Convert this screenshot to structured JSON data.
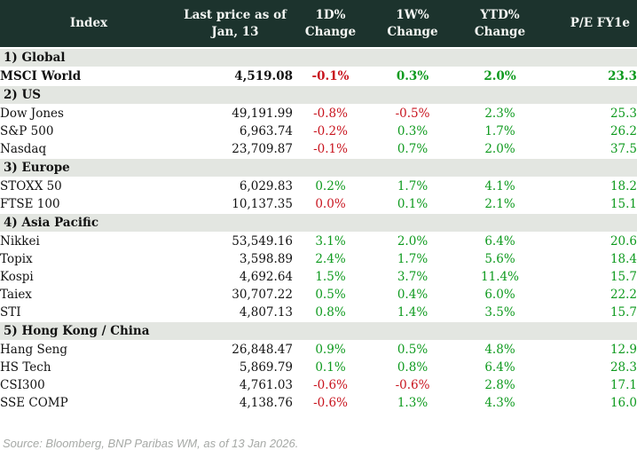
{
  "colors": {
    "header_bg": "#1c332d",
    "header_text": "#f4f6f3",
    "section_bg": "#e3e6e1",
    "positive": "#0e9a1e",
    "negative": "#c8141e",
    "text": "#121212",
    "source_text": "#a6a9a6"
  },
  "table": {
    "header_keys": [
      "index",
      "last-price",
      "1d-change",
      "1w-change",
      "ytd-change",
      "pe-fy1e"
    ],
    "headers": [
      [
        "Index"
      ],
      [
        "Last price as of",
        "Jan, 13"
      ],
      [
        "1D% Change"
      ],
      [
        "1W% Change"
      ],
      [
        "YTD% Change"
      ],
      [
        "P/E FY1e"
      ]
    ],
    "sections": [
      {
        "label": "1) Global",
        "rows": [
          {
            "index": "MSCI World",
            "last_price": "4,519.08",
            "chg_1d": "-0.1%",
            "chg_1w": "0.3%",
            "chg_ytd": "2.0%",
            "pe": "23.3",
            "emphasis": true
          }
        ]
      },
      {
        "label": "2) US",
        "rows": [
          {
            "index": "Dow Jones",
            "last_price": "49,191.99",
            "chg_1d": "-0.8%",
            "chg_1w": "-0.5%",
            "chg_ytd": "2.3%",
            "pe": "25.3",
            "emphasis": false
          },
          {
            "index": "S&P 500",
            "last_price": "6,963.74",
            "chg_1d": "-0.2%",
            "chg_1w": "0.3%",
            "chg_ytd": "1.7%",
            "pe": "26.2",
            "emphasis": false
          },
          {
            "index": "Nasdaq",
            "last_price": "23,709.87",
            "chg_1d": "-0.1%",
            "chg_1w": "0.7%",
            "chg_ytd": "2.0%",
            "pe": "37.5",
            "emphasis": false
          }
        ]
      },
      {
        "label": "3) Europe",
        "rows": [
          {
            "index": "STOXX 50",
            "last_price": "6,029.83",
            "chg_1d": "0.2%",
            "chg_1w": "1.7%",
            "chg_ytd": "4.1%",
            "pe": "18.2",
            "emphasis": false
          },
          {
            "index": "FTSE 100",
            "last_price": "10,137.35",
            "chg_1d": "0.0%",
            "chg_1w": "0.1%",
            "chg_ytd": "2.1%",
            "pe": "15.1",
            "emphasis": false
          }
        ]
      },
      {
        "label": "4) Asia Pacific",
        "rows": [
          {
            "index": "Nikkei",
            "last_price": "53,549.16",
            "chg_1d": "3.1%",
            "chg_1w": "2.0%",
            "chg_ytd": "6.4%",
            "pe": "20.6",
            "emphasis": false
          },
          {
            "index": "Topix",
            "last_price": "3,598.89",
            "chg_1d": "2.4%",
            "chg_1w": "1.7%",
            "chg_ytd": "5.6%",
            "pe": "18.4",
            "emphasis": false
          },
          {
            "index": "Kospi",
            "last_price": "4,692.64",
            "chg_1d": "1.5%",
            "chg_1w": "3.7%",
            "chg_ytd": "11.4%",
            "pe": "15.7",
            "emphasis": false
          },
          {
            "index": "Taiex",
            "last_price": "30,707.22",
            "chg_1d": "0.5%",
            "chg_1w": "0.4%",
            "chg_ytd": "6.0%",
            "pe": "22.2",
            "emphasis": false
          },
          {
            "index": "STI",
            "last_price": "4,807.13",
            "chg_1d": "0.8%",
            "chg_1w": "1.4%",
            "chg_ytd": "3.5%",
            "pe": "15.7",
            "emphasis": false
          }
        ]
      },
      {
        "label": "5) Hong Kong / China",
        "rows": [
          {
            "index": "Hang Seng",
            "last_price": "26,848.47",
            "chg_1d": "0.9%",
            "chg_1w": "0.5%",
            "chg_ytd": "4.8%",
            "pe": "12.9",
            "emphasis": false
          },
          {
            "index": "HS Tech",
            "last_price": "5,869.79",
            "chg_1d": "0.1%",
            "chg_1w": "0.8%",
            "chg_ytd": "6.4%",
            "pe": "28.3",
            "emphasis": false
          },
          {
            "index": "CSI300",
            "last_price": "4,761.03",
            "chg_1d": "-0.6%",
            "chg_1w": "-0.6%",
            "chg_ytd": "2.8%",
            "pe": "17.1",
            "emphasis": false
          },
          {
            "index": "SSE COMP",
            "last_price": "4,138.76",
            "chg_1d": "-0.6%",
            "chg_1w": "1.3%",
            "chg_ytd": "4.3%",
            "pe": "16.0",
            "emphasis": false
          }
        ]
      }
    ]
  },
  "chart_data": {
    "type": "table",
    "title": "",
    "columns": [
      "Index",
      "Last price as of Jan, 13",
      "1D% Change",
      "1W% Change",
      "YTD% Change",
      "P/E FY1e"
    ],
    "rows": [
      [
        "1) Global",
        "",
        "",
        "",
        "",
        ""
      ],
      [
        "MSCI World",
        4519.08,
        -0.1,
        0.3,
        2.0,
        23.3
      ],
      [
        "2) US",
        "",
        "",
        "",
        "",
        ""
      ],
      [
        "Dow Jones",
        49191.99,
        -0.8,
        -0.5,
        2.3,
        25.3
      ],
      [
        "S&P 500",
        6963.74,
        -0.2,
        0.3,
        1.7,
        26.2
      ],
      [
        "Nasdaq",
        23709.87,
        -0.1,
        0.7,
        2.0,
        37.5
      ],
      [
        "3) Europe",
        "",
        "",
        "",
        "",
        ""
      ],
      [
        "STOXX 50",
        6029.83,
        0.2,
        1.7,
        4.1,
        18.2
      ],
      [
        "FTSE 100",
        10137.35,
        0.0,
        0.1,
        2.1,
        15.1
      ],
      [
        "4) Asia Pacific",
        "",
        "",
        "",
        "",
        ""
      ],
      [
        "Nikkei",
        53549.16,
        3.1,
        2.0,
        6.4,
        20.6
      ],
      [
        "Topix",
        3598.89,
        2.4,
        1.7,
        5.6,
        18.4
      ],
      [
        "Kospi",
        4692.64,
        1.5,
        3.7,
        11.4,
        15.7
      ],
      [
        "Taiex",
        30707.22,
        0.5,
        0.4,
        6.0,
        22.2
      ],
      [
        "STI",
        4807.13,
        0.8,
        1.4,
        3.5,
        15.7
      ],
      [
        "5) Hong Kong / China",
        "",
        "",
        "",
        "",
        ""
      ],
      [
        "Hang Seng",
        26848.47,
        0.9,
        0.5,
        4.8,
        12.9
      ],
      [
        "HS Tech",
        5869.79,
        0.1,
        0.8,
        6.4,
        28.3
      ],
      [
        "CSI300",
        4761.03,
        -0.6,
        -0.6,
        2.8,
        17.1
      ],
      [
        "SSE COMP",
        4138.76,
        -0.6,
        1.3,
        4.3,
        16.0
      ]
    ]
  },
  "footer": {
    "source": "Source: Bloomberg, BNP Paribas WM, as of 13 Jan 2026."
  }
}
